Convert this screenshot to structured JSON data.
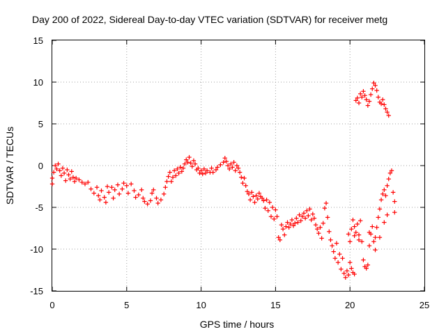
{
  "chart_data": {
    "type": "scatter",
    "title": "Day 200 of 2022, Sidereal Day-to-day VTEC variation (SDTVAR) for receiver metg",
    "xlabel": "GPS time / hours",
    "ylabel": "SDTVAR / TECUs",
    "xlim": [
      0,
      25
    ],
    "ylim": [
      -15,
      15
    ],
    "xticks": [
      0,
      5,
      10,
      15,
      20,
      25
    ],
    "yticks": [
      -15,
      -10,
      -5,
      0,
      5,
      10,
      15
    ],
    "xtick_labels": [
      "0",
      "5",
      "10",
      "15",
      "20",
      "25"
    ],
    "ytick_labels": [
      "-15",
      "-10",
      "-5",
      "0",
      "5",
      "10",
      "15"
    ],
    "grid": true,
    "marker": "plus",
    "color": "#ff0000",
    "series": [
      {
        "name": "receiver metg",
        "points": [
          [
            0.0,
            -1.5
          ],
          [
            0.0,
            -2.2
          ],
          [
            0.1,
            -0.8
          ],
          [
            0.2,
            0.0
          ],
          [
            0.3,
            -0.4
          ],
          [
            0.4,
            0.2
          ],
          [
            0.5,
            -0.6
          ],
          [
            0.6,
            -1.2
          ],
          [
            0.7,
            -0.3
          ],
          [
            0.8,
            -0.9
          ],
          [
            0.9,
            -1.8
          ],
          [
            1.0,
            -0.5
          ],
          [
            1.1,
            -1.1
          ],
          [
            1.2,
            -1.6
          ],
          [
            1.3,
            -0.7
          ],
          [
            1.4,
            -1.4
          ],
          [
            1.5,
            -1.9
          ],
          [
            1.6,
            -1.5
          ],
          [
            1.8,
            -1.7
          ],
          [
            2.0,
            -2.0
          ],
          [
            2.2,
            -2.2
          ],
          [
            2.4,
            -2.0
          ],
          [
            2.6,
            -2.8
          ],
          [
            2.8,
            -3.3
          ],
          [
            3.0,
            -2.6
          ],
          [
            3.1,
            -3.6
          ],
          [
            3.2,
            -4.1
          ],
          [
            3.3,
            -3.0
          ],
          [
            3.5,
            -3.8
          ],
          [
            3.6,
            -4.4
          ],
          [
            3.7,
            -2.5
          ],
          [
            3.8,
            -3.2
          ],
          [
            4.0,
            -2.6
          ],
          [
            4.1,
            -3.9
          ],
          [
            4.2,
            -2.9
          ],
          [
            4.4,
            -2.3
          ],
          [
            4.5,
            -3.4
          ],
          [
            4.7,
            -2.8
          ],
          [
            4.8,
            -2.1
          ],
          [
            5.0,
            -2.4
          ],
          [
            5.1,
            -3.3
          ],
          [
            5.3,
            -2.2
          ],
          [
            5.5,
            -3.0
          ],
          [
            5.6,
            -3.8
          ],
          [
            5.8,
            -3.5
          ],
          [
            6.0,
            -2.9
          ],
          [
            6.1,
            -3.9
          ],
          [
            6.2,
            -4.3
          ],
          [
            6.4,
            -4.6
          ],
          [
            6.6,
            -4.2
          ],
          [
            6.7,
            -3.3
          ],
          [
            6.8,
            -2.9
          ],
          [
            7.0,
            -3.9
          ],
          [
            7.1,
            -4.5
          ],
          [
            7.3,
            -4.1
          ],
          [
            7.5,
            -3.4
          ],
          [
            7.6,
            -2.6
          ],
          [
            7.7,
            -1.9
          ],
          [
            7.8,
            -1.3
          ],
          [
            7.9,
            -0.8
          ],
          [
            8.0,
            -1.9
          ],
          [
            8.1,
            -1.4
          ],
          [
            8.2,
            -0.6
          ],
          [
            8.3,
            -1.2
          ],
          [
            8.4,
            -0.4
          ],
          [
            8.5,
            -0.9
          ],
          [
            8.6,
            -0.2
          ],
          [
            8.7,
            -0.7
          ],
          [
            8.8,
            -0.3
          ],
          [
            8.9,
            0.2
          ],
          [
            9.0,
            0.7
          ],
          [
            9.1,
            0.4
          ],
          [
            9.2,
            1.0
          ],
          [
            9.3,
            0.3
          ],
          [
            9.4,
            -0.1
          ],
          [
            9.5,
            0.6
          ],
          [
            9.6,
            0.2
          ],
          [
            9.7,
            -0.5
          ],
          [
            9.8,
            -0.3
          ],
          [
            9.9,
            -0.9
          ],
          [
            10.0,
            -0.6
          ],
          [
            10.1,
            -1.0
          ],
          [
            10.2,
            -0.4
          ],
          [
            10.3,
            -0.9
          ],
          [
            10.4,
            -0.6
          ],
          [
            10.6,
            -0.8
          ],
          [
            10.7,
            -0.3
          ],
          [
            10.8,
            -0.8
          ],
          [
            11.0,
            -0.5
          ],
          [
            11.1,
            -0.2
          ],
          [
            11.3,
            0.1
          ],
          [
            11.5,
            0.4
          ],
          [
            11.6,
            0.9
          ],
          [
            11.7,
            0.5
          ],
          [
            11.8,
            0.0
          ],
          [
            11.9,
            -0.4
          ],
          [
            12.0,
            0.2
          ],
          [
            12.1,
            -0.2
          ],
          [
            12.2,
            0.4
          ],
          [
            12.3,
            -0.6
          ],
          [
            12.4,
            0.0
          ],
          [
            12.5,
            -0.3
          ],
          [
            12.6,
            -0.8
          ],
          [
            12.7,
            -1.4
          ],
          [
            12.8,
            -2.1
          ],
          [
            12.9,
            -1.5
          ],
          [
            13.0,
            -2.4
          ],
          [
            13.1,
            -3.1
          ],
          [
            13.2,
            -3.4
          ],
          [
            13.3,
            -4.1
          ],
          [
            13.4,
            -3.2
          ],
          [
            13.5,
            -3.7
          ],
          [
            13.6,
            -4.4
          ],
          [
            13.7,
            -3.6
          ],
          [
            13.8,
            -4.0
          ],
          [
            13.9,
            -3.3
          ],
          [
            14.0,
            -3.7
          ],
          [
            14.1,
            -3.9
          ],
          [
            14.2,
            -4.2
          ],
          [
            14.3,
            -5.1
          ],
          [
            14.4,
            -4.1
          ],
          [
            14.5,
            -5.4
          ],
          [
            14.6,
            -4.4
          ],
          [
            14.7,
            -6.1
          ],
          [
            14.8,
            -5.0
          ],
          [
            14.9,
            -6.4
          ],
          [
            15.0,
            -5.3
          ],
          [
            15.1,
            -6.1
          ],
          [
            15.2,
            -8.6
          ],
          [
            15.3,
            -8.9
          ],
          [
            15.4,
            -7.1
          ],
          [
            15.5,
            -7.6
          ],
          [
            15.6,
            -8.3
          ],
          [
            15.7,
            -7.3
          ],
          [
            15.8,
            -6.8
          ],
          [
            15.9,
            -7.4
          ],
          [
            16.0,
            -7.0
          ],
          [
            16.1,
            -6.5
          ],
          [
            16.2,
            -7.2
          ],
          [
            16.3,
            -6.9
          ],
          [
            16.4,
            -6.3
          ],
          [
            16.5,
            -6.8
          ],
          [
            16.6,
            -5.9
          ],
          [
            16.7,
            -6.6
          ],
          [
            16.8,
            -6.1
          ],
          [
            16.9,
            -5.7
          ],
          [
            17.0,
            -6.3
          ],
          [
            17.1,
            -5.4
          ],
          [
            17.2,
            -6.0
          ],
          [
            17.3,
            -5.2
          ],
          [
            17.4,
            -6.5
          ],
          [
            17.5,
            -5.8
          ],
          [
            17.6,
            -6.3
          ],
          [
            17.7,
            -7.1
          ],
          [
            17.8,
            -7.6
          ],
          [
            17.9,
            -8.1
          ],
          [
            18.0,
            -7.4
          ],
          [
            18.1,
            -8.7
          ],
          [
            18.2,
            -6.9
          ],
          [
            18.3,
            -5.1
          ],
          [
            18.4,
            -4.5
          ],
          [
            18.5,
            -6.2
          ],
          [
            18.6,
            -7.9
          ],
          [
            18.7,
            -8.9
          ],
          [
            18.8,
            -9.6
          ],
          [
            18.9,
            -10.3
          ],
          [
            19.0,
            -11.1
          ],
          [
            19.1,
            -9.3
          ],
          [
            19.2,
            -11.6
          ],
          [
            19.3,
            -10.6
          ],
          [
            19.4,
            -12.4
          ],
          [
            19.5,
            -11.1
          ],
          [
            19.6,
            -12.9
          ],
          [
            19.7,
            -13.4
          ],
          [
            19.8,
            -12.6
          ],
          [
            19.9,
            -13.1
          ],
          [
            20.0,
            -11.6
          ],
          [
            20.1,
            -12.3
          ],
          [
            20.2,
            -12.8
          ],
          [
            20.3,
            -13.0
          ],
          [
            19.9,
            -8.2
          ],
          [
            20.0,
            -9.1
          ],
          [
            20.1,
            -7.6
          ],
          [
            20.2,
            -6.5
          ],
          [
            20.3,
            -7.3
          ],
          [
            20.4,
            -8.0
          ],
          [
            20.5,
            -7.0
          ],
          [
            20.6,
            -8.3
          ],
          [
            20.7,
            -6.6
          ],
          [
            20.8,
            -9.1
          ],
          [
            20.9,
            -11.3
          ],
          [
            21.0,
            -12.1
          ],
          [
            21.1,
            -12.3
          ],
          [
            21.2,
            -11.9
          ],
          [
            21.3,
            -9.6
          ],
          [
            21.4,
            -8.2
          ],
          [
            21.5,
            -7.3
          ],
          [
            21.6,
            -9.1
          ],
          [
            21.7,
            -8.6
          ],
          [
            21.8,
            -7.4
          ],
          [
            21.9,
            -6.2
          ],
          [
            22.0,
            -5.2
          ],
          [
            22.1,
            -4.1
          ],
          [
            22.2,
            -3.4
          ],
          [
            22.3,
            -2.9
          ],
          [
            22.4,
            -3.6
          ],
          [
            22.5,
            -2.4
          ],
          [
            22.6,
            -1.6
          ],
          [
            22.7,
            -0.9
          ],
          [
            22.8,
            -0.6
          ],
          [
            22.9,
            -3.2
          ],
          [
            23.0,
            -4.3
          ],
          [
            23.0,
            -5.6
          ],
          [
            20.3,
            -8.4
          ],
          [
            20.6,
            -8.9
          ],
          [
            21.3,
            -8.0
          ],
          [
            21.7,
            -10.1
          ],
          [
            22.0,
            -8.6
          ],
          [
            22.3,
            -6.8
          ],
          [
            22.5,
            -5.9
          ],
          [
            20.4,
            7.8
          ],
          [
            20.5,
            8.1
          ],
          [
            20.6,
            7.5
          ],
          [
            20.7,
            8.6
          ],
          [
            20.8,
            8.2
          ],
          [
            20.9,
            8.9
          ],
          [
            21.0,
            8.4
          ],
          [
            21.1,
            7.9
          ],
          [
            21.2,
            7.2
          ],
          [
            21.3,
            7.7
          ],
          [
            21.4,
            8.5
          ],
          [
            21.5,
            9.2
          ],
          [
            21.6,
            9.9
          ],
          [
            21.7,
            9.6
          ],
          [
            21.8,
            9.0
          ],
          [
            21.9,
            8.2
          ],
          [
            22.0,
            7.6
          ],
          [
            22.1,
            7.4
          ],
          [
            22.2,
            7.9
          ],
          [
            22.3,
            7.3
          ],
          [
            22.4,
            6.8
          ],
          [
            22.5,
            6.4
          ],
          [
            22.6,
            6.0
          ]
        ]
      }
    ]
  }
}
